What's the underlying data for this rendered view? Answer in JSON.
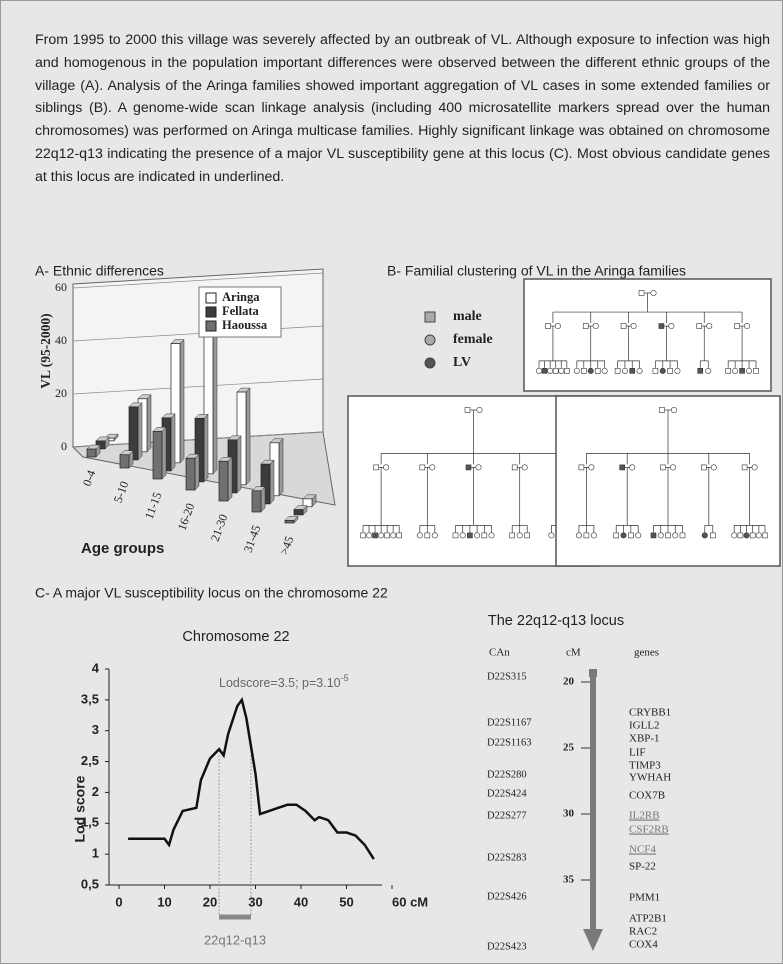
{
  "intro": "From 1995 to 2000 this village was severely affected by an outbreak of VL. Although exposure to infection was high and homogenous in the population important differences were observed between the different ethnic groups of the village (A). Analysis of the Aringa families showed important aggregation of VL cases in some extended families or siblings (B). A genome-wide scan linkage analysis (including 400 microsatellite markers spread over the human chromosomes) was performed on Aringa multicase families. Highly significant linkage was obtained on chromosome 22q12-q13 indicating the presence of a major VL susceptibility gene at this locus (C). Most obvious candidate genes at this locus are indicated in underlined.",
  "panel_b": {
    "title": "B- Familial clustering of VL in the Aringa families",
    "legend": [
      "male",
      "female",
      "LV"
    ]
  },
  "panel_c": {
    "title": "C- A major VL susceptibility locus on the chromosome 22"
  },
  "chart_data": [
    {
      "type": "bar",
      "title": "A- Ethnic differences",
      "x_label": "Age groups",
      "y_label": "VL (95-2000)",
      "categories": [
        "0-4",
        "5-10",
        "11-15",
        "16-20",
        "21-30",
        "31-45",
        ">45"
      ],
      "series": [
        {
          "name": "Aringa",
          "color": "#ffffff",
          "values": [
            1,
            20,
            45,
            55,
            35,
            20,
            3
          ]
        },
        {
          "name": "Fellata",
          "color": "#3c3c3c",
          "values": [
            3,
            20,
            20,
            24,
            20,
            15,
            2
          ]
        },
        {
          "name": "Haoussa",
          "color": "#707070",
          "values": [
            3,
            5,
            18,
            12,
            15,
            8,
            1
          ]
        }
      ],
      "ylim": [
        0,
        60
      ],
      "yticks": [
        0,
        20,
        40,
        60
      ],
      "grid": true
    },
    {
      "type": "line",
      "title": "Chromosome 22",
      "y_label": "Lod score",
      "color": "#111111",
      "x": [
        2,
        10,
        11,
        12,
        14,
        17,
        18,
        20,
        22,
        23,
        24,
        26,
        27,
        28,
        30,
        31,
        33,
        35,
        37,
        39,
        41,
        43,
        44,
        46,
        48,
        50,
        52,
        54,
        56
      ],
      "values": [
        1.25,
        1.25,
        1.15,
        1.4,
        1.7,
        1.75,
        2.2,
        2.55,
        2.7,
        2.6,
        2.95,
        3.4,
        3.5,
        3.2,
        2.3,
        1.65,
        1.7,
        1.75,
        1.8,
        1.8,
        1.7,
        1.55,
        1.6,
        1.55,
        1.35,
        1.35,
        1.3,
        1.15,
        0.92
      ],
      "xlim": [
        0,
        60
      ],
      "xticks": [
        0,
        10,
        20,
        30,
        40,
        50,
        {
          "value": 60,
          "label": "60 cM"
        }
      ],
      "ylim": [
        0.5,
        4
      ],
      "yticks": [
        {
          "value": 0.5,
          "label": "0,5"
        },
        1,
        {
          "value": 1.5,
          "label": "1,5"
        },
        2,
        {
          "value": 2.5,
          "label": "2,5"
        },
        3,
        {
          "value": 3.5,
          "label": "3,5"
        },
        4
      ],
      "annotation": {
        "text": "Lodscore=3.5; p=3.10",
        "superscript": "-5"
      },
      "region": {
        "label": "22q12-q13",
        "x": [
          22,
          29
        ]
      }
    }
  ],
  "locus": {
    "title": "The 22q12-q13 locus",
    "headers": [
      "CAn",
      "cM",
      "genes"
    ],
    "cm_ticks": [
      20,
      25,
      30,
      35
    ],
    "markers": [
      "D22S315",
      "D22S1167",
      "D22S1163",
      "D22S280",
      "D22S424",
      "D22S277",
      "D22S283",
      "D22S426",
      "D22S423"
    ],
    "genes": [
      {
        "name": "CRYBB1",
        "underlined": false
      },
      {
        "name": "IGLL2",
        "underlined": false
      },
      {
        "name": "XBP-1",
        "underlined": false
      },
      {
        "name": "LIF",
        "underlined": false
      },
      {
        "name": "TIMP3",
        "underlined": false
      },
      {
        "name": "YWHAH",
        "underlined": false
      },
      {
        "name": "COX7B",
        "underlined": false
      },
      {
        "name": "IL2RB",
        "underlined": true
      },
      {
        "name": "CSF2RB",
        "underlined": true
      },
      {
        "name": "NCF4",
        "underlined": true
      },
      {
        "name": "SP-22",
        "underlined": false
      },
      {
        "name": "PMM1",
        "underlined": false
      },
      {
        "name": "ATP2B1",
        "underlined": false
      },
      {
        "name": "RAC2",
        "underlined": false
      },
      {
        "name": "COX4",
        "underlined": false
      }
    ]
  }
}
